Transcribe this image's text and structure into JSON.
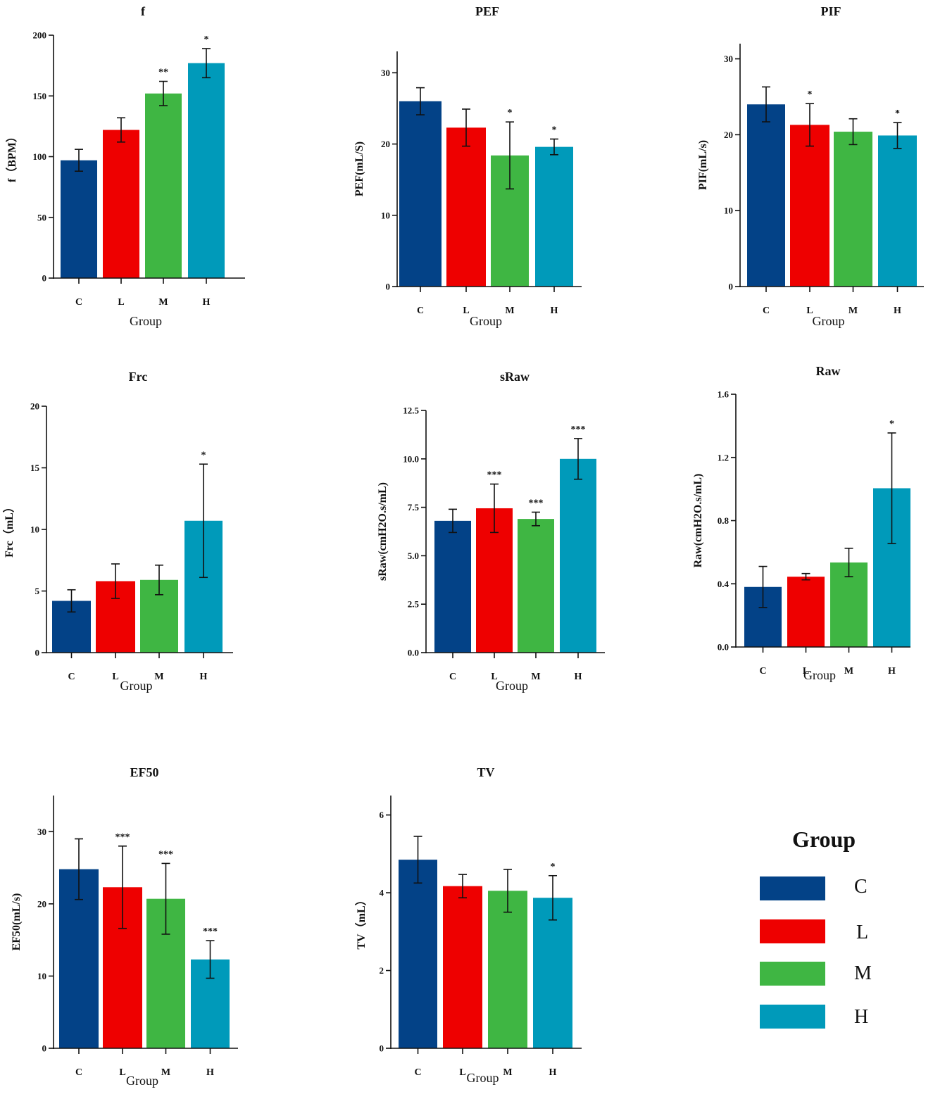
{
  "chart_data": [
    {
      "type": "bar",
      "title": "f",
      "ylabel": "f（BPM）",
      "xlabel": "Group",
      "ylim": [
        0,
        200
      ],
      "yticks": [
        0,
        50,
        100,
        150,
        200
      ],
      "categories": [
        "C",
        "L",
        "M",
        "H"
      ],
      "values": [
        97,
        122,
        152,
        177
      ],
      "errors": [
        9,
        10,
        10,
        12
      ],
      "significance": [
        "",
        "",
        "**",
        "*"
      ]
    },
    {
      "type": "bar",
      "title": "PEF",
      "ylabel": "PEF(mL/S)",
      "xlabel": "Group",
      "ylim": [
        0,
        33
      ],
      "yticks": [
        0,
        10,
        20,
        30
      ],
      "categories": [
        "C",
        "L",
        "M",
        "H"
      ],
      "values": [
        26,
        22.3,
        18.4,
        19.6
      ],
      "errors": [
        1.9,
        2.6,
        4.7,
        1.1
      ],
      "significance": [
        "",
        "",
        "*",
        "*"
      ]
    },
    {
      "type": "bar",
      "title": "PIF",
      "ylabel": "PIF(mL/s)",
      "xlabel": "Group",
      "ylim": [
        0,
        32
      ],
      "yticks": [
        0,
        10,
        20,
        30
      ],
      "categories": [
        "C",
        "L",
        "M",
        "H"
      ],
      "values": [
        24,
        21.3,
        20.4,
        19.9
      ],
      "errors": [
        2.3,
        2.8,
        1.7,
        1.7
      ],
      "significance": [
        "",
        "*",
        "",
        "*"
      ]
    },
    {
      "type": "bar",
      "title": "Frc",
      "ylabel": "Frc（mL）",
      "xlabel": "Group",
      "ylim": [
        0,
        20
      ],
      "yticks": [
        0,
        5,
        10,
        15,
        20
      ],
      "categories": [
        "C",
        "L",
        "M",
        "H"
      ],
      "values": [
        4.2,
        5.8,
        5.9,
        10.7
      ],
      "errors": [
        0.9,
        1.4,
        1.2,
        4.6
      ],
      "significance": [
        "",
        "",
        "",
        "*"
      ]
    },
    {
      "type": "bar",
      "title": "sRaw",
      "ylabel": "sRaw(cmH2O.s/mL)",
      "xlabel": "Group",
      "ylim": [
        0,
        12.5
      ],
      "yticks": [
        0,
        2.5,
        5,
        7.5,
        10,
        12.5
      ],
      "categories": [
        "C",
        "L",
        "M",
        "H"
      ],
      "values": [
        6.8,
        7.45,
        6.9,
        10
      ],
      "errors": [
        0.6,
        1.25,
        0.35,
        1.05
      ],
      "significance": [
        "",
        "***",
        "***",
        "***"
      ]
    },
    {
      "type": "bar",
      "title": "Raw",
      "ylabel": "Raw(cmH2O.s/mL)",
      "xlabel": "Group",
      "ylim": [
        0,
        1.6
      ],
      "yticks": [
        0,
        0.4,
        0.8,
        1.2,
        1.6
      ],
      "categories": [
        "C",
        "L",
        "M",
        "H"
      ],
      "values": [
        0.38,
        0.445,
        0.535,
        1.005
      ],
      "errors": [
        0.13,
        0.02,
        0.09,
        0.35
      ],
      "significance": [
        "",
        "",
        "",
        "*"
      ]
    },
    {
      "type": "bar",
      "title": "EF50",
      "ylabel": "EF50(mL/s)",
      "xlabel": "Group",
      "ylim": [
        0,
        35
      ],
      "yticks": [
        0,
        10,
        20,
        30
      ],
      "categories": [
        "C",
        "L",
        "M",
        "H"
      ],
      "values": [
        24.8,
        22.3,
        20.7,
        12.3
      ],
      "errors": [
        4.2,
        5.7,
        4.9,
        2.6
      ],
      "significance": [
        "",
        "***",
        "***",
        "***"
      ]
    },
    {
      "type": "bar",
      "title": "TV",
      "ylabel": "TV（mL）",
      "xlabel": "Group",
      "ylim": [
        0,
        6.5
      ],
      "yticks": [
        0,
        2,
        4,
        6
      ],
      "categories": [
        "C",
        "L",
        "M",
        "H"
      ],
      "values": [
        4.85,
        4.17,
        4.05,
        3.87
      ],
      "errors": [
        0.6,
        0.3,
        0.55,
        0.57
      ],
      "significance": [
        "",
        "",
        "",
        "*"
      ]
    }
  ],
  "legend": {
    "title": "Group",
    "items": [
      {
        "label": "C",
        "color": "#034287"
      },
      {
        "label": "L",
        "color": "#ee0000"
      },
      {
        "label": "M",
        "color": "#3fb643"
      },
      {
        "label": "H",
        "color": "#009aba"
      }
    ]
  },
  "colors": {
    "C": "#034287",
    "L": "#ee0000",
    "M": "#3fb643",
    "H": "#009aba",
    "axis": "#111111"
  }
}
